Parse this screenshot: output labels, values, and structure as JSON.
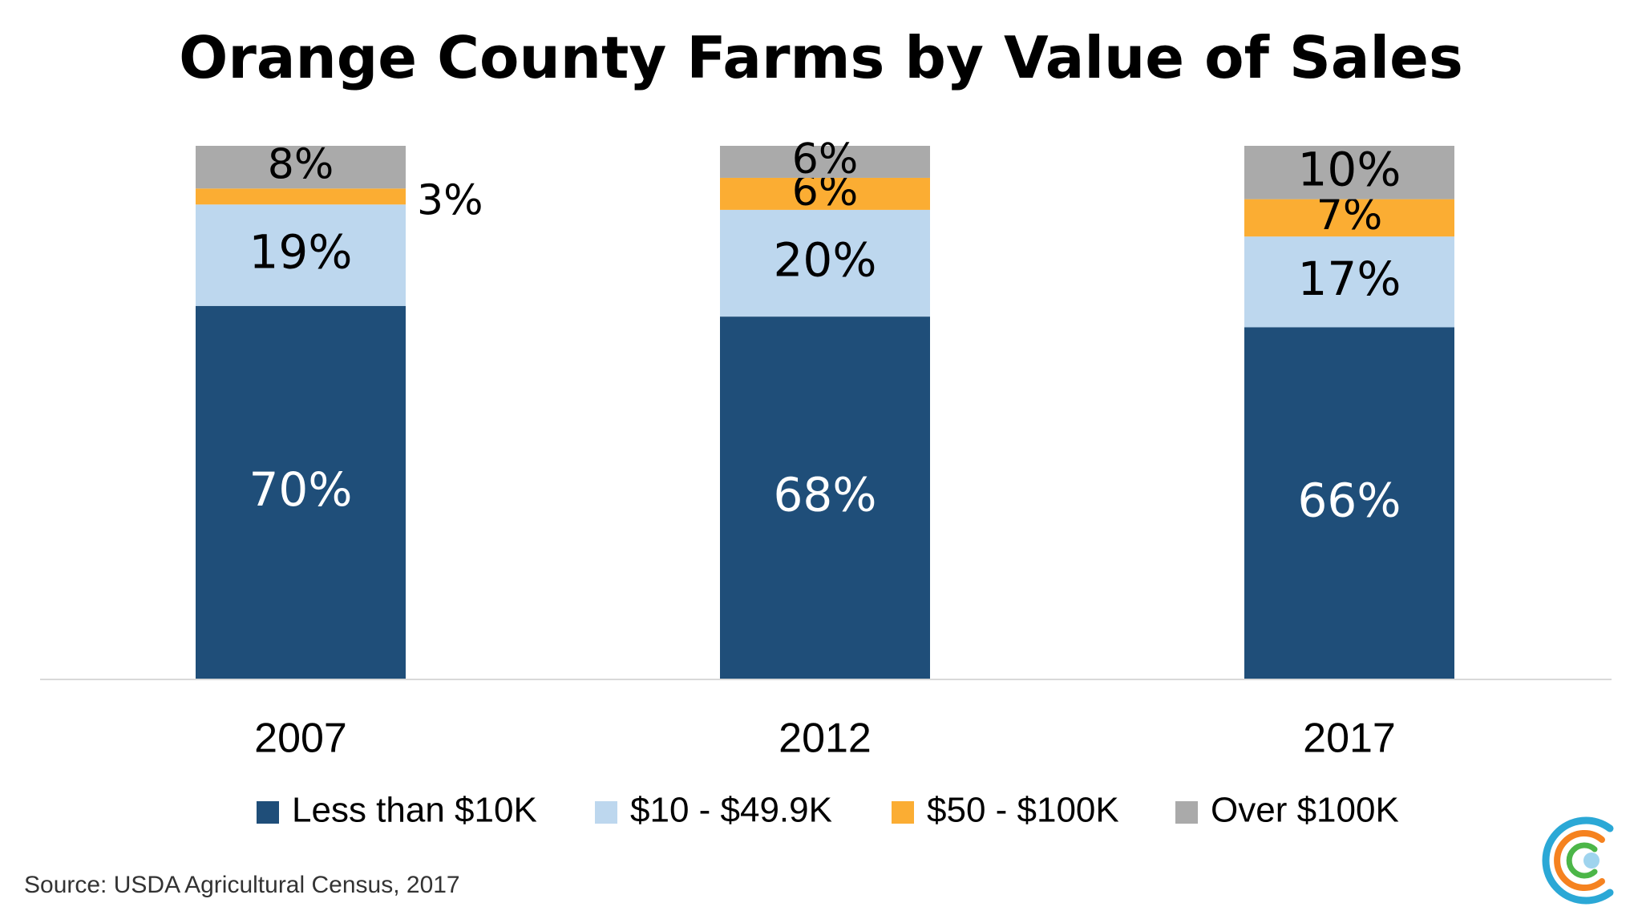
{
  "page": {
    "source": "Source: USDA Agricultural Census, 2017"
  },
  "logo": {
    "icon": "concentric-arcs-logo-icon",
    "colors": [
      "#2BA8D6",
      "#F58220",
      "#4CB648",
      "#9FD4EE"
    ]
  },
  "chart_data": {
    "type": "bar",
    "stacked": true,
    "title": "Orange County Farms by Value of Sales",
    "xlabel": "",
    "ylabel": "",
    "ylim": [
      0,
      100
    ],
    "grid": false,
    "legend_position": "bottom",
    "categories": [
      "2007",
      "2012",
      "2017"
    ],
    "series": [
      {
        "name": "Less than $10K",
        "color": "#1F4E79",
        "values": [
          70,
          68,
          66
        ],
        "labels": [
          "70%",
          "68%",
          "66%"
        ],
        "label_color": "#ffffff"
      },
      {
        "name": "$10 - $49.9K",
        "color": "#BDD7EE",
        "values": [
          19,
          20,
          17
        ],
        "labels": [
          "19%",
          "20%",
          "17%"
        ],
        "label_color": "#000000"
      },
      {
        "name": "$50 - $100K",
        "color": "#FBAD33",
        "values": [
          3,
          6,
          7
        ],
        "labels": [
          "3%",
          "6%",
          "7%"
        ],
        "label_color": "#000000"
      },
      {
        "name": "Over $100K",
        "color": "#AAAAAA",
        "values": [
          8,
          6,
          10
        ],
        "labels": [
          "8%",
          "6%",
          "10%"
        ],
        "label_color": "#000000"
      }
    ]
  }
}
